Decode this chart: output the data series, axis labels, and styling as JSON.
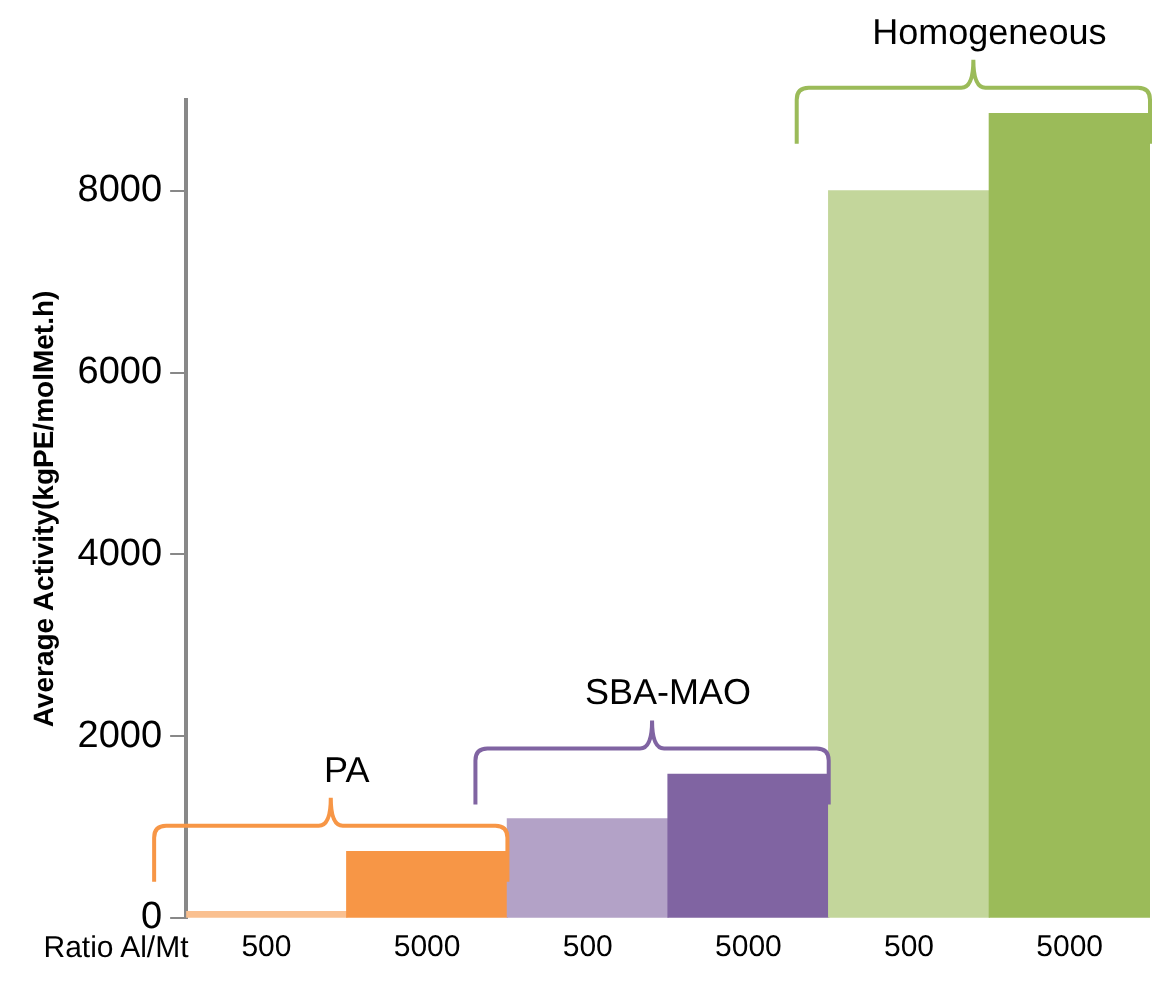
{
  "chart_data": {
    "type": "bar",
    "xlabel": "Ratio Al/Mt",
    "ylabel": "Average Activity(kgPE/molMet.h)",
    "categories": [
      "500",
      "5000",
      "500",
      "5000",
      "500",
      "5000"
    ],
    "values": [
      70,
      730,
      1090,
      1580,
      8000,
      8850
    ],
    "colors": [
      "#fac090",
      "#f79646",
      "#b3a2c7",
      "#8064a2",
      "#c3d69b",
      "#9bbb59"
    ],
    "ylim": [
      0,
      9000
    ],
    "yticks": [
      0,
      2000,
      4000,
      6000,
      8000
    ],
    "grid": false,
    "legend": false,
    "annotations": [
      "PA",
      "SBA-MAO",
      "Homogeneous"
    ]
  }
}
